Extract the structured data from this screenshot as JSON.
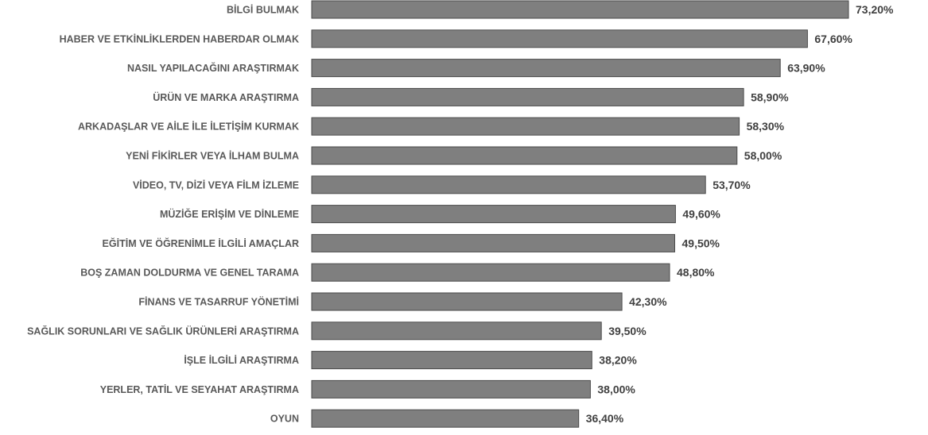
{
  "chart_data": {
    "type": "bar",
    "orientation": "horizontal",
    "categories": [
      "BİLGİ BULMAK",
      "HABER VE ETKİNLİKLERDEN HABERDAR OLMAK",
      "NASIL YAPILACAĞINI ARAŞTIRMAK",
      "ÜRÜN VE MARKA ARAŞTIRMA",
      "ARKADAŞLAR VE AİLE İLE İLETİŞİM KURMAK",
      "YENİ FİKİRLER VEYA İLHAM BULMA",
      "VİDEO, TV, DİZİ VEYA FİLM İZLEME",
      "MÜZİĞE ERİŞİM VE DİNLEME",
      "EĞİTİM VE ÖĞRENİMLE İLGİLİ AMAÇLAR",
      "BOŞ ZAMAN DOLDURMA VE GENEL TARAMA",
      "FİNANS VE TASARRUF YÖNETİMİ",
      "SAĞLIK SORUNLARI VE SAĞLIK ÜRÜNLERİ ARAŞTIRMA",
      "İŞLE İLGİLİ ARAŞTIRMA",
      "YERLER, TATİL VE SEYAHAT ARAŞTIRMA",
      "OYUN"
    ],
    "values": [
      73.2,
      67.6,
      63.9,
      58.9,
      58.3,
      58.0,
      53.7,
      49.6,
      49.5,
      48.8,
      42.3,
      39.5,
      38.2,
      38.0,
      36.4
    ],
    "value_labels": [
      "73,20%",
      "67,60%",
      "63,90%",
      "58,90%",
      "58,30%",
      "58,00%",
      "53,70%",
      "49,60%",
      "49,50%",
      "48,80%",
      "42,30%",
      "39,50%",
      "38,20%",
      "38,00%",
      "36,40%"
    ],
    "title": "",
    "xlabel": "",
    "ylabel": "",
    "xlim": [
      0,
      73.2
    ],
    "grid": false,
    "legend": "none",
    "colors": {
      "bar": "#7f7f7f",
      "bar_stroke": "#4a4a4a"
    }
  }
}
